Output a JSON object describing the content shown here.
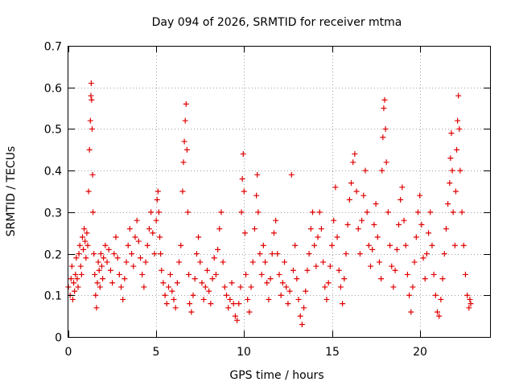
{
  "chart_data": {
    "type": "scatter",
    "title": "Day 094 of 2026, SRMTID for receiver mtma",
    "xlabel": "GPS time / hours",
    "ylabel": "SRMTID / TECUs",
    "xlim": [
      0,
      24
    ],
    "ylim": [
      0,
      0.7
    ],
    "x_ticks": [
      0,
      5,
      10,
      15,
      20
    ],
    "x_tick_labels": [
      "0",
      "5",
      "10",
      "15",
      "20"
    ],
    "y_ticks": [
      0,
      0.1,
      0.2,
      0.3,
      0.4,
      0.5,
      0.6,
      0.7
    ],
    "y_tick_labels": [
      "0",
      "0.1",
      "0.2",
      "0.3",
      "0.4",
      "0.5",
      "0.6",
      "0.7"
    ],
    "grid": true,
    "marker": "plus",
    "color": "#e00000",
    "series": [
      {
        "name": "SRMTID",
        "points": [
          [
            0.0,
            0.12
          ],
          [
            0.1,
            0.1
          ],
          [
            0.15,
            0.14
          ],
          [
            0.2,
            0.17
          ],
          [
            0.25,
            0.09
          ],
          [
            0.3,
            0.13
          ],
          [
            0.35,
            0.11
          ],
          [
            0.4,
            0.15
          ],
          [
            0.45,
            0.19
          ],
          [
            0.5,
            0.14
          ],
          [
            0.55,
            0.12
          ],
          [
            0.6,
            0.2
          ],
          [
            0.65,
            0.22
          ],
          [
            0.7,
            0.17
          ],
          [
            0.75,
            0.15
          ],
          [
            0.8,
            0.24
          ],
          [
            0.85,
            0.21
          ],
          [
            0.9,
            0.26
          ],
          [
            0.95,
            0.23
          ],
          [
            1.0,
            0.19
          ],
          [
            1.05,
            0.25
          ],
          [
            1.1,
            0.22
          ],
          [
            1.15,
            0.35
          ],
          [
            1.2,
            0.45
          ],
          [
            1.25,
            0.52
          ],
          [
            1.28,
            0.58
          ],
          [
            1.3,
            0.61
          ],
          [
            1.32,
            0.57
          ],
          [
            1.35,
            0.5
          ],
          [
            1.38,
            0.39
          ],
          [
            1.4,
            0.3
          ],
          [
            1.45,
            0.2
          ],
          [
            1.5,
            0.15
          ],
          [
            1.55,
            0.1
          ],
          [
            1.6,
            0.07
          ],
          [
            1.65,
            0.13
          ],
          [
            1.7,
            0.18
          ],
          [
            1.75,
            0.16
          ],
          [
            1.8,
            0.12
          ],
          [
            1.85,
            0.2
          ],
          [
            1.9,
            0.17
          ],
          [
            1.95,
            0.14
          ],
          [
            2.0,
            0.19
          ],
          [
            2.1,
            0.22
          ],
          [
            2.2,
            0.18
          ],
          [
            2.3,
            0.21
          ],
          [
            2.4,
            0.16
          ],
          [
            2.5,
            0.13
          ],
          [
            2.6,
            0.2
          ],
          [
            2.7,
            0.24
          ],
          [
            2.8,
            0.19
          ],
          [
            2.9,
            0.15
          ],
          [
            3.0,
            0.12
          ],
          [
            3.1,
            0.09
          ],
          [
            3.2,
            0.14
          ],
          [
            3.3,
            0.18
          ],
          [
            3.4,
            0.22
          ],
          [
            3.5,
            0.26
          ],
          [
            3.6,
            0.2
          ],
          [
            3.7,
            0.17
          ],
          [
            3.8,
            0.24
          ],
          [
            3.9,
            0.28
          ],
          [
            4.0,
            0.23
          ],
          [
            4.1,
            0.19
          ],
          [
            4.2,
            0.15
          ],
          [
            4.3,
            0.12
          ],
          [
            4.4,
            0.18
          ],
          [
            4.5,
            0.22
          ],
          [
            4.6,
            0.26
          ],
          [
            4.7,
            0.3
          ],
          [
            4.8,
            0.25
          ],
          [
            4.9,
            0.2
          ],
          [
            5.0,
            0.28
          ],
          [
            5.05,
            0.33
          ],
          [
            5.1,
            0.35
          ],
          [
            5.15,
            0.3
          ],
          [
            5.2,
            0.24
          ],
          [
            5.25,
            0.2
          ],
          [
            5.3,
            0.16
          ],
          [
            5.4,
            0.13
          ],
          [
            5.5,
            0.1
          ],
          [
            5.6,
            0.08
          ],
          [
            5.7,
            0.12
          ],
          [
            5.8,
            0.15
          ],
          [
            5.9,
            0.11
          ],
          [
            6.0,
            0.09
          ],
          [
            6.1,
            0.07
          ],
          [
            6.2,
            0.13
          ],
          [
            6.3,
            0.18
          ],
          [
            6.4,
            0.22
          ],
          [
            6.5,
            0.35
          ],
          [
            6.55,
            0.42
          ],
          [
            6.6,
            0.47
          ],
          [
            6.65,
            0.52
          ],
          [
            6.7,
            0.56
          ],
          [
            6.75,
            0.45
          ],
          [
            6.8,
            0.3
          ],
          [
            6.85,
            0.15
          ],
          [
            6.9,
            0.08
          ],
          [
            7.0,
            0.06
          ],
          [
            7.1,
            0.1
          ],
          [
            7.2,
            0.14
          ],
          [
            7.3,
            0.2
          ],
          [
            7.4,
            0.24
          ],
          [
            7.5,
            0.18
          ],
          [
            7.6,
            0.13
          ],
          [
            7.7,
            0.09
          ],
          [
            7.8,
            0.12
          ],
          [
            7.9,
            0.16
          ],
          [
            8.0,
            0.11
          ],
          [
            8.1,
            0.08
          ],
          [
            8.2,
            0.14
          ],
          [
            8.3,
            0.19
          ],
          [
            8.4,
            0.15
          ],
          [
            8.5,
            0.21
          ],
          [
            8.6,
            0.26
          ],
          [
            8.7,
            0.3
          ],
          [
            8.8,
            0.18
          ],
          [
            8.9,
            0.12
          ],
          [
            9.0,
            0.1
          ],
          [
            9.1,
            0.07
          ],
          [
            9.2,
            0.09
          ],
          [
            9.3,
            0.13
          ],
          [
            9.4,
            0.08
          ],
          [
            9.5,
            0.05
          ],
          [
            9.6,
            0.04
          ],
          [
            9.7,
            0.08
          ],
          [
            9.8,
            0.12
          ],
          [
            9.85,
            0.3
          ],
          [
            9.9,
            0.38
          ],
          [
            9.95,
            0.44
          ],
          [
            10.0,
            0.35
          ],
          [
            10.05,
            0.25
          ],
          [
            10.1,
            0.15
          ],
          [
            10.2,
            0.09
          ],
          [
            10.3,
            0.06
          ],
          [
            10.4,
            0.12
          ],
          [
            10.5,
            0.18
          ],
          [
            10.6,
            0.26
          ],
          [
            10.7,
            0.34
          ],
          [
            10.75,
            0.39
          ],
          [
            10.8,
            0.3
          ],
          [
            10.9,
            0.2
          ],
          [
            11.0,
            0.15
          ],
          [
            11.1,
            0.22
          ],
          [
            11.2,
            0.18
          ],
          [
            11.3,
            0.13
          ],
          [
            11.4,
            0.09
          ],
          [
            11.5,
            0.14
          ],
          [
            11.6,
            0.2
          ],
          [
            11.7,
            0.25
          ],
          [
            11.8,
            0.28
          ],
          [
            11.9,
            0.2
          ],
          [
            12.0,
            0.15
          ],
          [
            12.1,
            0.1
          ],
          [
            12.2,
            0.13
          ],
          [
            12.3,
            0.18
          ],
          [
            12.4,
            0.12
          ],
          [
            12.5,
            0.08
          ],
          [
            12.6,
            0.11
          ],
          [
            12.7,
            0.39
          ],
          [
            12.8,
            0.16
          ],
          [
            12.9,
            0.22
          ],
          [
            13.0,
            0.14
          ],
          [
            13.1,
            0.09
          ],
          [
            13.2,
            0.05
          ],
          [
            13.3,
            0.03
          ],
          [
            13.4,
            0.07
          ],
          [
            13.5,
            0.11
          ],
          [
            13.6,
            0.16
          ],
          [
            13.7,
            0.2
          ],
          [
            13.8,
            0.26
          ],
          [
            13.9,
            0.3
          ],
          [
            14.0,
            0.22
          ],
          [
            14.1,
            0.17
          ],
          [
            14.2,
            0.24
          ],
          [
            14.3,
            0.3
          ],
          [
            14.4,
            0.26
          ],
          [
            14.5,
            0.18
          ],
          [
            14.6,
            0.12
          ],
          [
            14.7,
            0.09
          ],
          [
            14.8,
            0.13
          ],
          [
            14.9,
            0.17
          ],
          [
            15.0,
            0.22
          ],
          [
            15.1,
            0.28
          ],
          [
            15.2,
            0.36
          ],
          [
            15.3,
            0.24
          ],
          [
            15.4,
            0.16
          ],
          [
            15.5,
            0.12
          ],
          [
            15.6,
            0.08
          ],
          [
            15.7,
            0.14
          ],
          [
            15.8,
            0.2
          ],
          [
            15.9,
            0.27
          ],
          [
            16.0,
            0.33
          ],
          [
            16.1,
            0.37
          ],
          [
            16.2,
            0.42
          ],
          [
            16.3,
            0.44
          ],
          [
            16.4,
            0.35
          ],
          [
            16.5,
            0.26
          ],
          [
            16.6,
            0.2
          ],
          [
            16.7,
            0.28
          ],
          [
            16.8,
            0.34
          ],
          [
            16.9,
            0.4
          ],
          [
            17.0,
            0.3
          ],
          [
            17.1,
            0.22
          ],
          [
            17.2,
            0.17
          ],
          [
            17.3,
            0.21
          ],
          [
            17.4,
            0.27
          ],
          [
            17.5,
            0.32
          ],
          [
            17.6,
            0.24
          ],
          [
            17.7,
            0.18
          ],
          [
            17.8,
            0.14
          ],
          [
            17.85,
            0.4
          ],
          [
            17.9,
            0.48
          ],
          [
            17.95,
            0.55
          ],
          [
            18.0,
            0.57
          ],
          [
            18.05,
            0.5
          ],
          [
            18.1,
            0.42
          ],
          [
            18.2,
            0.3
          ],
          [
            18.3,
            0.22
          ],
          [
            18.4,
            0.17
          ],
          [
            18.5,
            0.12
          ],
          [
            18.6,
            0.16
          ],
          [
            18.7,
            0.21
          ],
          [
            18.8,
            0.27
          ],
          [
            18.9,
            0.33
          ],
          [
            19.0,
            0.36
          ],
          [
            19.1,
            0.28
          ],
          [
            19.2,
            0.22
          ],
          [
            19.3,
            0.15
          ],
          [
            19.4,
            0.1
          ],
          [
            19.5,
            0.06
          ],
          [
            19.6,
            0.12
          ],
          [
            19.7,
            0.18
          ],
          [
            19.8,
            0.24
          ],
          [
            19.9,
            0.3
          ],
          [
            20.0,
            0.34
          ],
          [
            20.1,
            0.27
          ],
          [
            20.2,
            0.19
          ],
          [
            20.3,
            0.14
          ],
          [
            20.4,
            0.2
          ],
          [
            20.5,
            0.25
          ],
          [
            20.6,
            0.3
          ],
          [
            20.7,
            0.22
          ],
          [
            20.8,
            0.15
          ],
          [
            20.9,
            0.1
          ],
          [
            21.0,
            0.06
          ],
          [
            21.1,
            0.05
          ],
          [
            21.2,
            0.09
          ],
          [
            21.3,
            0.14
          ],
          [
            21.4,
            0.2
          ],
          [
            21.5,
            0.26
          ],
          [
            21.6,
            0.32
          ],
          [
            21.7,
            0.37
          ],
          [
            21.75,
            0.43
          ],
          [
            21.8,
            0.49
          ],
          [
            21.85,
            0.4
          ],
          [
            21.9,
            0.3
          ],
          [
            22.0,
            0.22
          ],
          [
            22.05,
            0.35
          ],
          [
            22.1,
            0.45
          ],
          [
            22.15,
            0.52
          ],
          [
            22.2,
            0.58
          ],
          [
            22.25,
            0.5
          ],
          [
            22.3,
            0.4
          ],
          [
            22.4,
            0.3
          ],
          [
            22.5,
            0.22
          ],
          [
            22.6,
            0.15
          ],
          [
            22.7,
            0.1
          ],
          [
            22.8,
            0.07
          ],
          [
            22.85,
            0.09
          ],
          [
            22.9,
            0.08
          ]
        ]
      }
    ]
  }
}
